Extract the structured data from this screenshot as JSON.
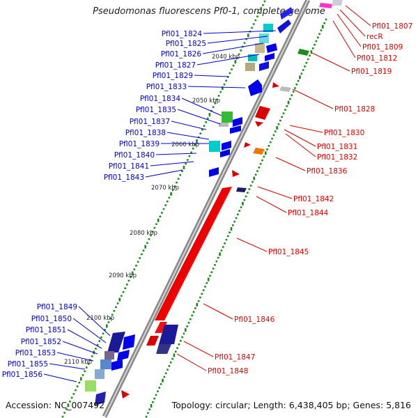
{
  "title": "Pseudomonas fluorescens Pf0-1, complete genome",
  "footer": {
    "accession": "Accession: NC_007492",
    "topology": "Topology: circular; Length: 6,438,405 bp; Genes: 5,816"
  },
  "scale_ticks": [
    "2040 kbp",
    "2050 kbp",
    "2060 kbp",
    "2070 kbp",
    "2080 kbp",
    "2090 kbp",
    "2100 kbp",
    "2110 kbp"
  ],
  "left_labels": [
    "Pfl01_1824",
    "Pfl01_1825",
    "Pfl01_1826",
    "Pfl01_1827",
    "Pfl01_1829",
    "Pfl01_1833",
    "Pfl01_1834",
    "Pfl01_1835",
    "Pfl01_1837",
    "Pfl01_1838",
    "Pfl01_1839",
    "Pfl01_1840",
    "Pfl01_1841",
    "Pfl01_1843",
    "Pfl01_1849",
    "Pfl01_1850",
    "Pfl01_1851",
    "Pfl01_1852",
    "Pfl01_1853",
    "Pfl01_1855",
    "Pfl01_1856"
  ],
  "right_labels": [
    "Pfl01_1807",
    "recR",
    "Pfl01_1809",
    "Pfl01_1812",
    "Pfl01_1819",
    "Pfl01_1828",
    "Pfl01_1830",
    "Pfl01_1831",
    "Pfl01_1832",
    "Pfl01_1836",
    "Pfl01_1842",
    "Pfl01_1844",
    "Pfl01_1845",
    "Pfl01_1846",
    "Pfl01_1847",
    "Pfl01_1848"
  ],
  "colors": {
    "forward": "#dd0000",
    "reverse": "#0000cc",
    "backbone": "#8c8c8c",
    "gc_dots": "#1a8a1a"
  }
}
